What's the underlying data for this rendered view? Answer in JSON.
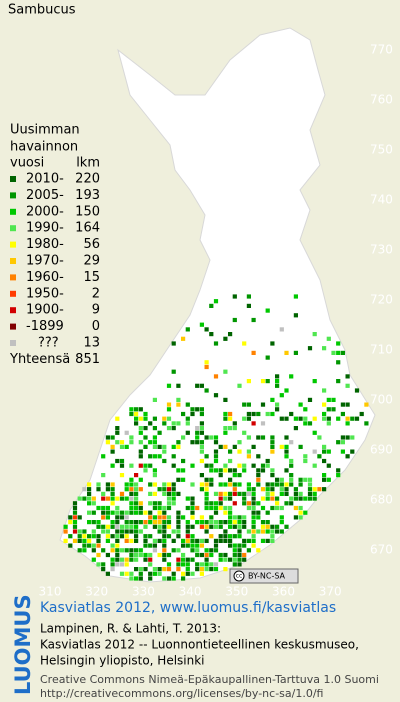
{
  "title": "Sambucus",
  "legend": {
    "heading": [
      "Uusimman",
      "havainnon"
    ],
    "col_year": "vuosi",
    "col_count": "lkm",
    "rows": [
      {
        "label": "2010-",
        "count": 220,
        "color": "#006400"
      },
      {
        "label": "2005-",
        "count": 193,
        "color": "#009600"
      },
      {
        "label": "2000-",
        "count": 150,
        "color": "#00c800"
      },
      {
        "label": "1990-",
        "count": 164,
        "color": "#50e650"
      },
      {
        "label": "1980-",
        "count": 56,
        "color": "#ffff00"
      },
      {
        "label": "1970-",
        "count": 29,
        "color": "#ffc800"
      },
      {
        "label": "1960-",
        "count": 15,
        "color": "#ff8200"
      },
      {
        "label": "1950-",
        "count": 2,
        "color": "#ff3c00"
      },
      {
        "label": "1900-",
        "count": 9,
        "color": "#d20000"
      },
      {
        "label": "-1899",
        "count": 0,
        "color": "#820000"
      },
      {
        "label": "???",
        "count": 13,
        "color": "#c0c0c0"
      }
    ],
    "total_label": "Yhteensä",
    "total": 851
  },
  "y_axis": [
    770,
    760,
    750,
    740,
    730,
    720,
    710,
    700,
    690,
    680,
    670
  ],
  "x_axis": [
    310,
    320,
    330,
    340,
    350,
    360,
    370
  ],
  "license_badge": "BY-NC-SA",
  "brand": "LUOMUS",
  "credits": {
    "link": "Kasviatlas 2012, www.luomus.fi/kasviatlas",
    "lines": [
      "Lampinen, R. & Lahti, T. 2013:",
      "Kasviatlas 2012 -- Luonnontieteellinen keskusmuseo,",
      "Helsingin yliopisto, Helsinki"
    ],
    "license": [
      "Creative Commons Nimeä-Epäkaupallinen-Tarttuva 1.0 Suomi",
      "http://creativecommons.org/licenses/by-nc-sa/1.0/fi"
    ]
  }
}
